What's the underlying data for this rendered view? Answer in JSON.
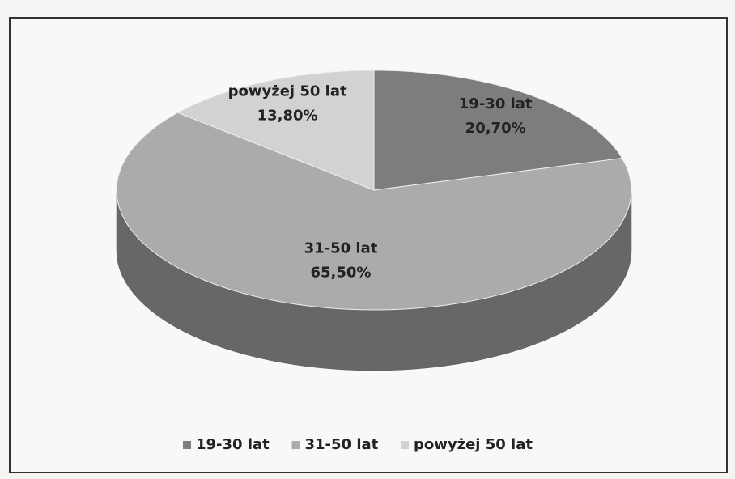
{
  "chart_data": {
    "type": "pie",
    "categories": [
      "19-30 lat",
      "31-50 lat",
      "powyżej 50 lat"
    ],
    "values": [
      20.7,
      65.5,
      13.8
    ],
    "value_labels": [
      "20,70%",
      "65,50%",
      "13,80%"
    ],
    "colors": [
      "#7d7d7d",
      "#ababab",
      "#d2d2d2"
    ],
    "legend": "bottom"
  }
}
